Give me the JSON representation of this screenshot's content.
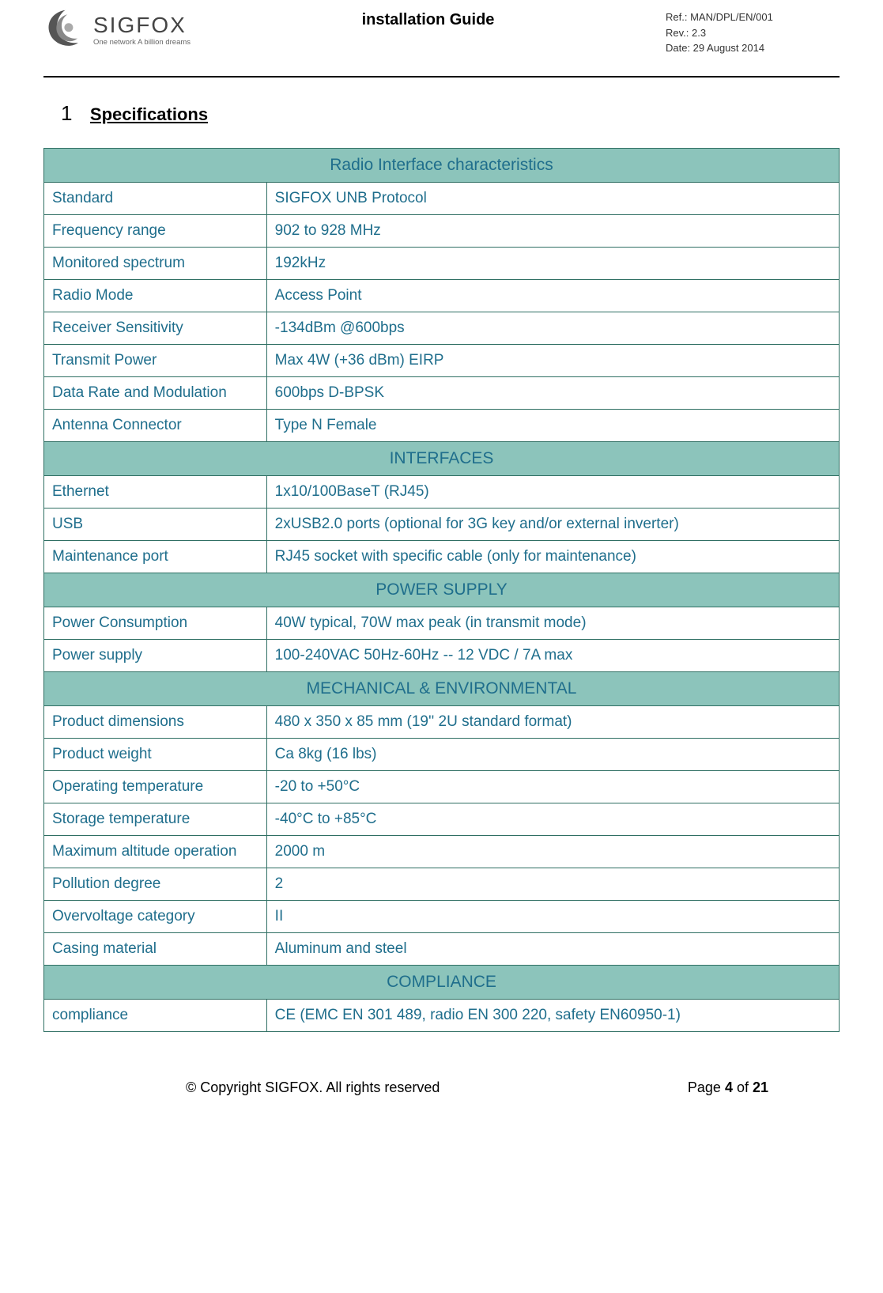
{
  "header": {
    "brand": "SIGFOX",
    "tagline": "One network A billion dreams",
    "title": "installation Guide",
    "ref": "Ref.: MAN/DPL/EN/001",
    "rev": "Rev.: 2.3",
    "date": "Date: 29 August 2014"
  },
  "section": {
    "number": "1",
    "title": "Specifications"
  },
  "table": {
    "text_color": "#1f6e8c",
    "border_color": "#2f6f63",
    "header_bg": "#8cc4bb",
    "font_size": 19,
    "header_font_size": 21,
    "label_col_width_pct": 28,
    "groups": [
      {
        "title": "Radio Interface characteristics",
        "rows": [
          {
            "label": "Standard",
            "value": "SIGFOX UNB Protocol"
          },
          {
            "label": "Frequency range",
            "value": "902 to 928 MHz"
          },
          {
            "label": "Monitored spectrum",
            "value": "192kHz"
          },
          {
            "label": "Radio Mode",
            "value": "Access Point"
          },
          {
            "label": "Receiver Sensitivity",
            "value": "-134dBm @600bps"
          },
          {
            "label": "Transmit Power",
            "value": "Max 4W (+36 dBm) EIRP"
          },
          {
            "label": "Data Rate and Modulation",
            "value": "600bps D-BPSK"
          },
          {
            "label": "Antenna Connector",
            "value": "Type N Female"
          }
        ]
      },
      {
        "title": "INTERFACES",
        "rows": [
          {
            "label": "Ethernet",
            "value": "1x10/100BaseT (RJ45)"
          },
          {
            "label": "USB",
            "value": "2xUSB2.0 ports (optional for 3G key and/or external inverter)"
          },
          {
            "label": "Maintenance port",
            "value": "RJ45 socket with specific cable (only for maintenance)"
          }
        ]
      },
      {
        "title": "POWER SUPPLY",
        "rows": [
          {
            "label": "Power Consumption",
            "value": "40W typical, 70W max peak (in transmit mode)"
          },
          {
            "label": "Power supply",
            "value": "100-240VAC 50Hz-60Hz  -- 12 VDC / 7A max"
          }
        ]
      },
      {
        "title": "MECHANICAL & ENVIRONMENTAL",
        "rows": [
          {
            "label": "Product dimensions",
            "value": "480 x 350 x 85 mm (19'' 2U standard format)"
          },
          {
            "label": "Product weight",
            "value": "Ca 8kg (16 lbs)"
          },
          {
            "label": "Operating temperature",
            "value": "-20 to +50°C"
          },
          {
            "label": "Storage temperature",
            "value": "-40°C to +85°C"
          },
          {
            "label": "Maximum altitude operation",
            "value": "2000 m"
          },
          {
            "label": "Pollution degree",
            "value": "2"
          },
          {
            "label": "Overvoltage category",
            "value": "II"
          },
          {
            "label": "Casing material",
            "value": "Aluminum and steel"
          }
        ]
      },
      {
        "title": "COMPLIANCE",
        "rows": [
          {
            "label": "compliance",
            "value": "CE (EMC EN 301 489, radio EN 300 220, safety EN60950-1)"
          }
        ]
      }
    ]
  },
  "footer": {
    "copyright": "© Copyright SIGFOX. All rights reserved",
    "page_label": "Page ",
    "page_current": "4",
    "page_of": " of ",
    "page_total": "21"
  }
}
